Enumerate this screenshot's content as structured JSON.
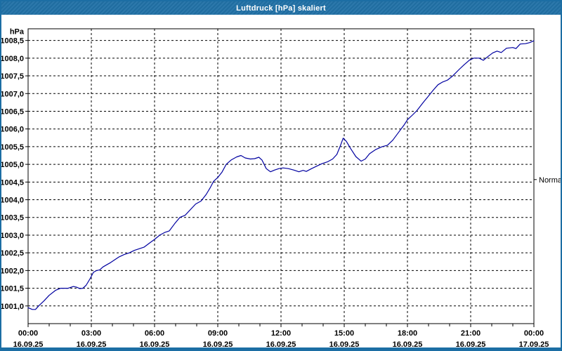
{
  "window": {
    "title": "Luftdruck [hPa] skaliert"
  },
  "colors": {
    "title_bar": "#2171a7",
    "window_border": "#1c6ea4",
    "plot_background": "#ffffff",
    "grid": "#000000",
    "axis": "#000000",
    "line": "#0000a0",
    "title_text": "#ffffff",
    "label_text": "#000000"
  },
  "chart_data": {
    "type": "line",
    "title": "Luftdruck [hPa] skaliert",
    "ylabel": "hPa",
    "xlabel": "",
    "grid": "dashed",
    "y_axis": {
      "min": 1000.5,
      "max": 1008.83,
      "tick_values": [
        1001.0,
        1001.5,
        1002.0,
        1002.5,
        1003.0,
        1003.5,
        1004.0,
        1004.5,
        1005.0,
        1005.5,
        1006.0,
        1006.5,
        1007.0,
        1007.5,
        1008.0,
        1008.5
      ],
      "tick_labels": [
        "1001,0",
        "1001,5",
        "1002,0",
        "1002,5",
        "1003,0",
        "1003,5",
        "1004,0",
        "1004,5",
        "1005,0",
        "1005,5",
        "1006,0",
        "1006,5",
        "1007,0",
        "1007,5",
        "1008,0",
        "1008,5"
      ]
    },
    "x_axis": {
      "min_hours": 0,
      "max_hours": 24,
      "major_tick_every_hours": 3,
      "minor_tick_every_hours": 1,
      "ticks": [
        {
          "hours": 0,
          "time": "00:00",
          "date": "16.09.25"
        },
        {
          "hours": 3,
          "time": "03:00",
          "date": "16.09.25"
        },
        {
          "hours": 6,
          "time": "06:00",
          "date": "16.09.25"
        },
        {
          "hours": 9,
          "time": "09:00",
          "date": "16.09.25"
        },
        {
          "hours": 12,
          "time": "12:00",
          "date": "16.09.25"
        },
        {
          "hours": 15,
          "time": "15:00",
          "date": "16.09.25"
        },
        {
          "hours": 18,
          "time": "18:00",
          "date": "16.09.25"
        },
        {
          "hours": 21,
          "time": "21:00",
          "date": "16.09.25"
        },
        {
          "hours": 24,
          "time": "00:00",
          "date": "17.09.25"
        }
      ]
    },
    "right_marker": {
      "label": "Normal",
      "value": 1004.57
    },
    "series": [
      {
        "name": "Luftdruck",
        "color": "#0000a0",
        "points": [
          [
            0,
            1000.95
          ],
          [
            0.2,
            1000.9
          ],
          [
            0.35,
            1000.9
          ],
          [
            0.5,
            1001.0
          ],
          [
            0.75,
            1001.14
          ],
          [
            1.0,
            1001.3
          ],
          [
            1.3,
            1001.44
          ],
          [
            1.55,
            1001.5
          ],
          [
            1.9,
            1001.5
          ],
          [
            2.15,
            1001.55
          ],
          [
            2.3,
            1001.53
          ],
          [
            2.45,
            1001.49
          ],
          [
            2.6,
            1001.5
          ],
          [
            2.75,
            1001.58
          ],
          [
            2.95,
            1001.78
          ],
          [
            3.1,
            1001.95
          ],
          [
            3.25,
            1002.0
          ],
          [
            3.4,
            1002.02
          ],
          [
            3.55,
            1002.1
          ],
          [
            3.75,
            1002.17
          ],
          [
            3.9,
            1002.22
          ],
          [
            4.1,
            1002.3
          ],
          [
            4.3,
            1002.38
          ],
          [
            4.55,
            1002.45
          ],
          [
            4.8,
            1002.5
          ],
          [
            5.05,
            1002.57
          ],
          [
            5.3,
            1002.62
          ],
          [
            5.5,
            1002.66
          ],
          [
            5.75,
            1002.77
          ],
          [
            6.0,
            1002.88
          ],
          [
            6.25,
            1003.0
          ],
          [
            6.5,
            1003.08
          ],
          [
            6.7,
            1003.12
          ],
          [
            6.95,
            1003.32
          ],
          [
            7.2,
            1003.5
          ],
          [
            7.45,
            1003.56
          ],
          [
            7.7,
            1003.72
          ],
          [
            7.95,
            1003.88
          ],
          [
            8.2,
            1003.96
          ],
          [
            8.45,
            1004.15
          ],
          [
            8.65,
            1004.35
          ],
          [
            8.8,
            1004.52
          ],
          [
            9.0,
            1004.63
          ],
          [
            9.2,
            1004.78
          ],
          [
            9.4,
            1005.0
          ],
          [
            9.65,
            1005.13
          ],
          [
            9.9,
            1005.21
          ],
          [
            10.1,
            1005.25
          ],
          [
            10.3,
            1005.18
          ],
          [
            10.55,
            1005.15
          ],
          [
            10.75,
            1005.16
          ],
          [
            10.95,
            1005.2
          ],
          [
            11.1,
            1005.12
          ],
          [
            11.3,
            1004.88
          ],
          [
            11.5,
            1004.79
          ],
          [
            11.7,
            1004.84
          ],
          [
            11.9,
            1004.88
          ],
          [
            12.1,
            1004.9
          ],
          [
            12.35,
            1004.88
          ],
          [
            12.6,
            1004.84
          ],
          [
            12.85,
            1004.79
          ],
          [
            13.05,
            1004.83
          ],
          [
            13.2,
            1004.8
          ],
          [
            13.45,
            1004.88
          ],
          [
            13.7,
            1004.95
          ],
          [
            13.95,
            1005.02
          ],
          [
            14.2,
            1005.07
          ],
          [
            14.45,
            1005.15
          ],
          [
            14.65,
            1005.28
          ],
          [
            14.8,
            1005.5
          ],
          [
            14.95,
            1005.74
          ],
          [
            15.1,
            1005.65
          ],
          [
            15.3,
            1005.45
          ],
          [
            15.55,
            1005.22
          ],
          [
            15.8,
            1005.09
          ],
          [
            16.0,
            1005.15
          ],
          [
            16.2,
            1005.3
          ],
          [
            16.5,
            1005.42
          ],
          [
            16.8,
            1005.5
          ],
          [
            17.05,
            1005.54
          ],
          [
            17.3,
            1005.68
          ],
          [
            17.6,
            1005.92
          ],
          [
            17.85,
            1006.12
          ],
          [
            18.0,
            1006.26
          ],
          [
            18.25,
            1006.4
          ],
          [
            18.45,
            1006.52
          ],
          [
            18.75,
            1006.75
          ],
          [
            19.0,
            1006.93
          ],
          [
            19.2,
            1007.08
          ],
          [
            19.45,
            1007.25
          ],
          [
            19.65,
            1007.32
          ],
          [
            19.9,
            1007.38
          ],
          [
            20.15,
            1007.5
          ],
          [
            20.45,
            1007.68
          ],
          [
            20.7,
            1007.82
          ],
          [
            20.95,
            1007.95
          ],
          [
            21.15,
            1008.0
          ],
          [
            21.4,
            1008.0
          ],
          [
            21.6,
            1007.94
          ],
          [
            21.85,
            1008.06
          ],
          [
            22.05,
            1008.15
          ],
          [
            22.25,
            1008.2
          ],
          [
            22.45,
            1008.16
          ],
          [
            22.7,
            1008.28
          ],
          [
            23.0,
            1008.3
          ],
          [
            23.15,
            1008.27
          ],
          [
            23.35,
            1008.4
          ],
          [
            23.6,
            1008.41
          ],
          [
            23.8,
            1008.44
          ],
          [
            24.0,
            1008.49
          ]
        ]
      }
    ]
  }
}
